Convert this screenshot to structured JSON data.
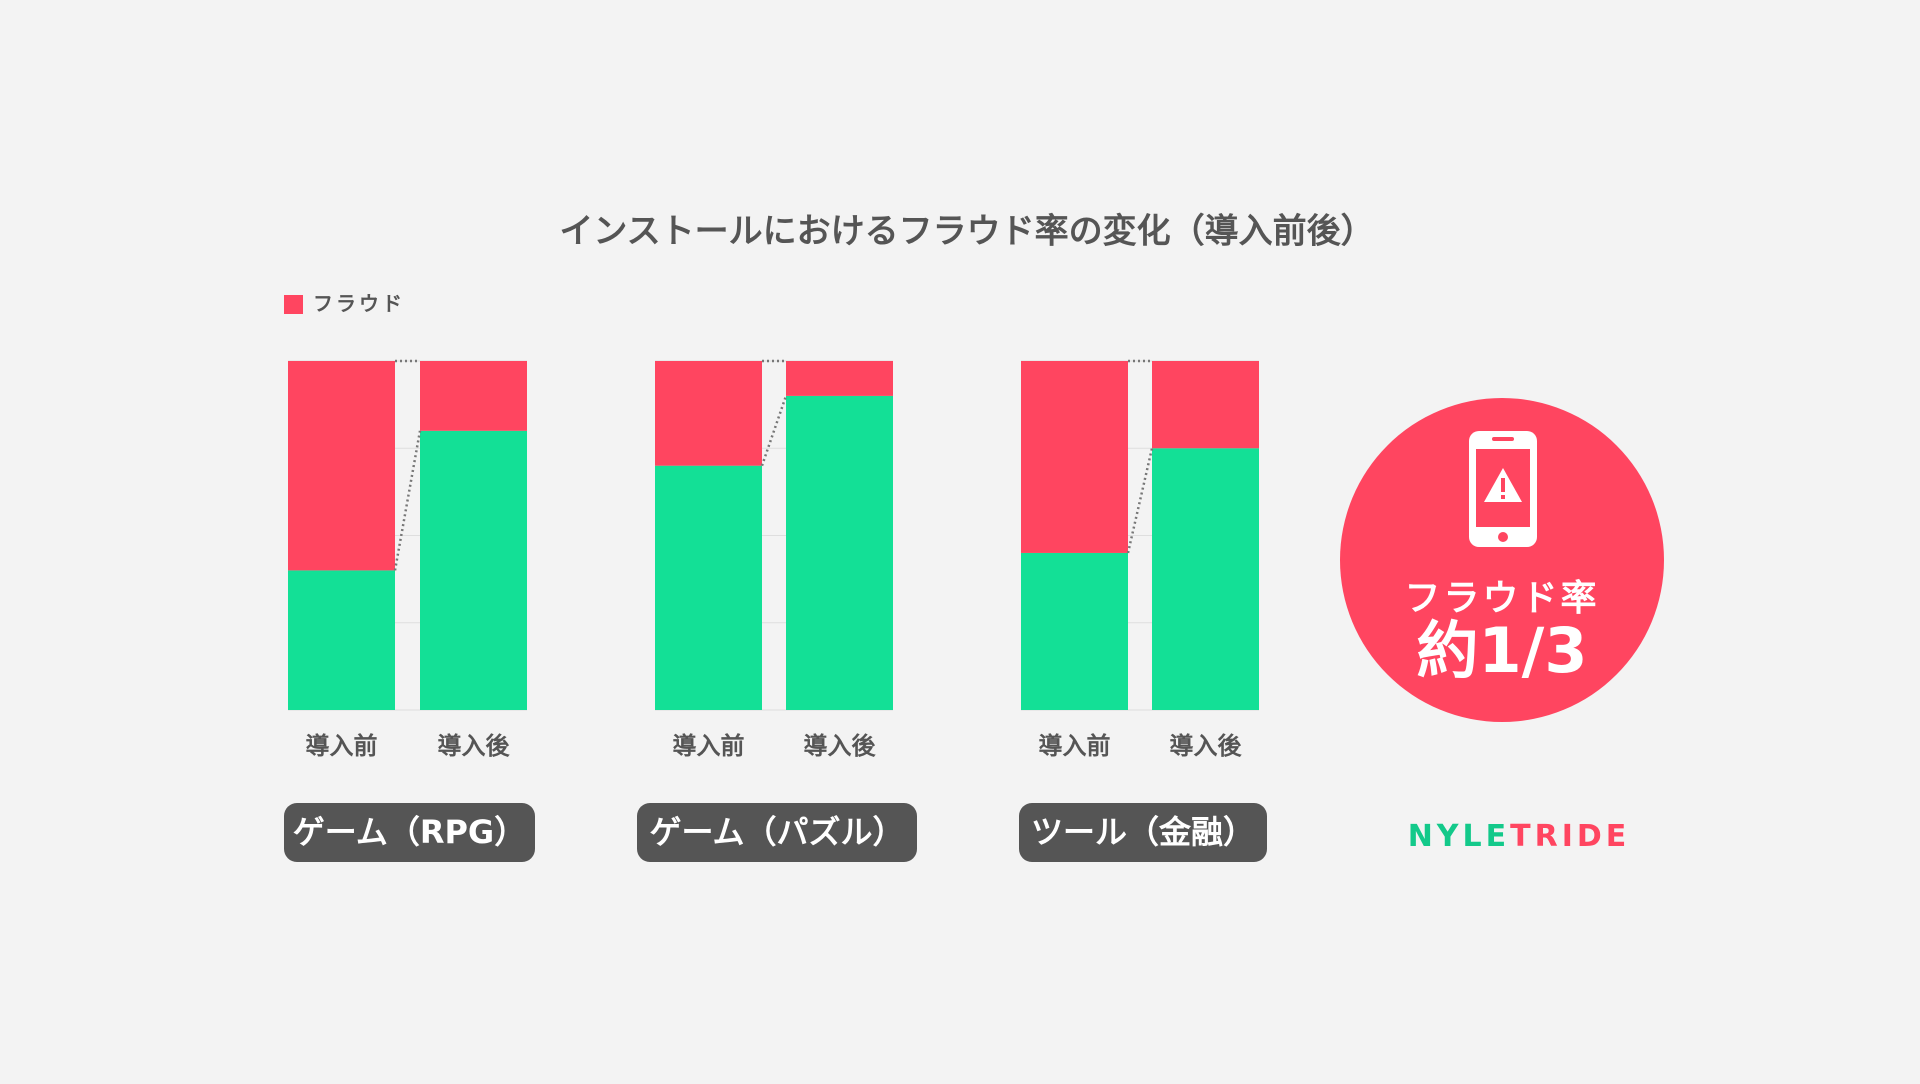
{
  "title": "インストールにおけるフラウド率の変化（導入前後）",
  "chart_data": [
    {
      "type": "bar",
      "stacked": true,
      "label": "ゲーム（RPG）",
      "categories": [
        "導入前",
        "導入後"
      ],
      "series": [
        {
          "color": "#13e096",
          "values": [
            40,
            80
          ]
        },
        {
          "name": "フラウド",
          "color": "#ff4560",
          "values": [
            60,
            20
          ]
        }
      ],
      "ylim": [
        0,
        100
      ],
      "yticks": [
        0,
        25,
        50,
        75,
        100
      ],
      "grid": true
    },
    {
      "type": "bar",
      "stacked": true,
      "label": "ゲーム（パズル）",
      "categories": [
        "導入前",
        "導入後"
      ],
      "series": [
        {
          "color": "#13e096",
          "values": [
            70,
            90
          ]
        },
        {
          "color": "#ff4560",
          "values": [
            30,
            10
          ]
        }
      ],
      "ylim": [
        0,
        100
      ],
      "yticks": [
        0,
        25,
        50,
        75,
        100
      ],
      "grid": true
    },
    {
      "type": "bar",
      "stacked": true,
      "label": "ツール（金融）",
      "categories": [
        "導入前",
        "導入後"
      ],
      "series": [
        {
          "color": "#13e096",
          "values": [
            45,
            75
          ]
        },
        {
          "color": "#ff4560",
          "values": [
            55,
            25
          ]
        }
      ],
      "ylim": [
        0,
        100
      ],
      "yticks": [
        0,
        25,
        50,
        75,
        100
      ],
      "grid": true
    }
  ],
  "callout": {
    "label": "フラウド率",
    "value": "約1/3"
  },
  "brand": [
    "NYLE",
    "TRIDE"
  ]
}
